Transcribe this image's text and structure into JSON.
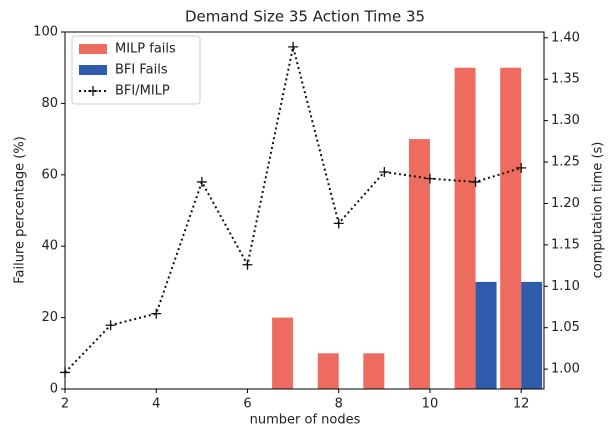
{
  "chart_data": {
    "type": "bar",
    "title": "Demand Size 35 Action Time 35",
    "x_label": "number of nodes",
    "y_label": "Failure percentage (%)",
    "y2_label": "computation time (s)",
    "x": [
      2,
      3,
      4,
      5,
      6,
      7,
      8,
      9,
      10,
      11,
      12
    ],
    "series": [
      {
        "name": "MILP fails",
        "type": "bar",
        "color": "#ee6b60",
        "values": [
          0,
          0,
          0,
          0,
          0,
          20,
          10,
          10,
          70,
          90,
          90
        ]
      },
      {
        "name": "BFI Fails",
        "type": "bar",
        "color": "#2f5caa",
        "values": [
          0,
          0,
          0,
          0,
          0,
          0,
          0,
          0,
          0,
          30,
          30
        ]
      },
      {
        "name": "BFI/MILP",
        "type": "line",
        "axis": "y2",
        "color": "#111111",
        "values": [
          0.996,
          1.053,
          1.067,
          1.226,
          1.126,
          1.389,
          1.176,
          1.238,
          1.23,
          1.226,
          1.243
        ]
      }
    ],
    "xlim": [
      2,
      12.5
    ],
    "xticks": [
      2,
      4,
      6,
      8,
      10,
      12
    ],
    "ylim": [
      0,
      100
    ],
    "yticks": [
      0,
      20,
      40,
      60,
      80,
      100
    ],
    "y2lim": [
      0.976,
      1.407
    ],
    "y2ticks": [
      {
        "value": 1.0,
        "label": "1.00"
      },
      {
        "value": 1.05,
        "label": "1.05"
      },
      {
        "value": 1.1,
        "label": "1.10"
      },
      {
        "value": 1.15,
        "label": "1.15"
      },
      {
        "value": 1.2,
        "label": "1.20"
      },
      {
        "value": 1.25,
        "label": "1.25"
      },
      {
        "value": 1.3,
        "label": "1.30"
      },
      {
        "value": 1.35,
        "label": "1.35"
      },
      {
        "value": 1.4,
        "label": "1.40"
      }
    ],
    "legend": "upper left"
  }
}
